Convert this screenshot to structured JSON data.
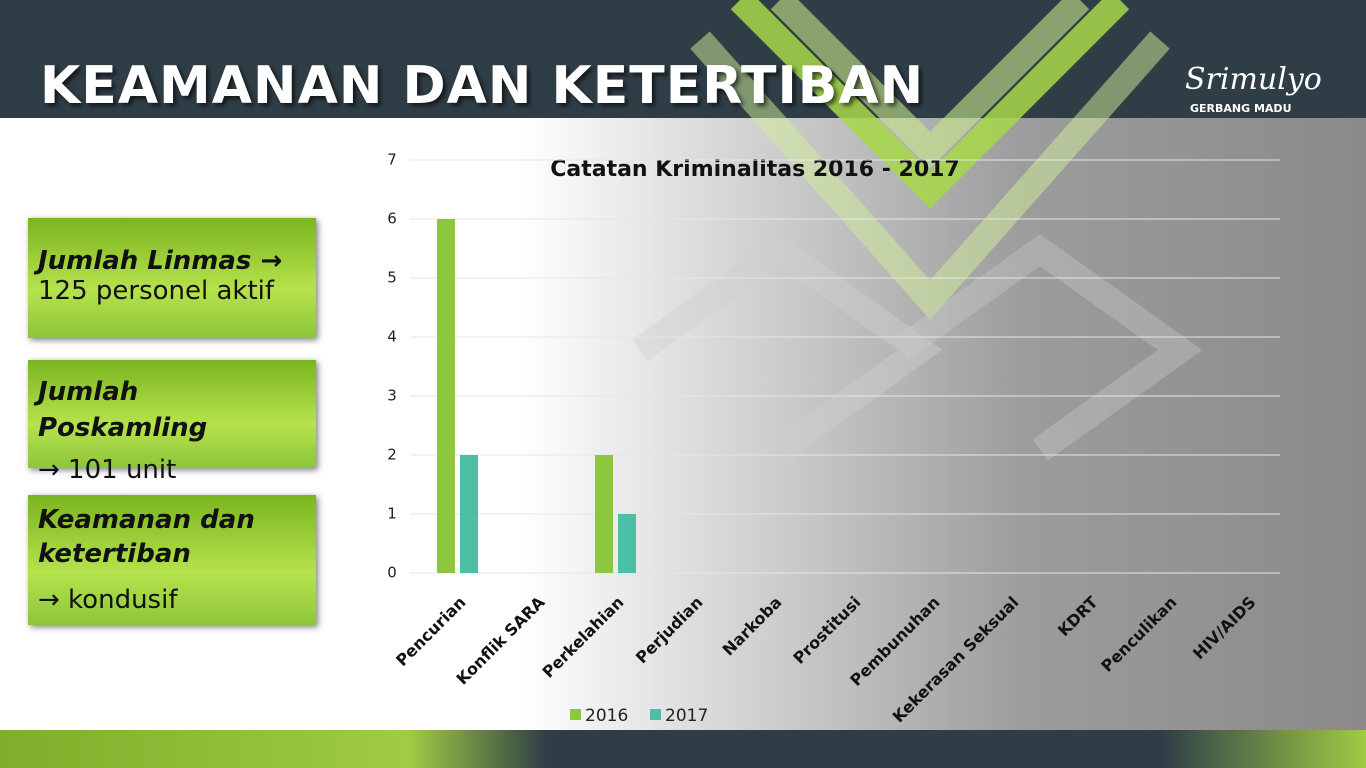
{
  "header": {
    "title": "KEAMANAN DAN KETERTIBAN",
    "logo": "Srimulyo",
    "logo_sub": "GERBANG MADU"
  },
  "boxes": [
    {
      "heading": "Jumlah Linmas →",
      "text": "125 personel aktif"
    },
    {
      "heading": "Jumlah Poskamling",
      "text": "→ 101 unit"
    },
    {
      "heading": "Keamanan dan ketertiban",
      "text": "→ kondusif"
    }
  ],
  "chart_data": {
    "type": "bar",
    "title": "Catatan Kriminalitas 2016 - 2017",
    "categories": [
      "Pencurian",
      "Konflik SARA",
      "Perkelahian",
      "Perjudian",
      "Narkoba",
      "Prostitusi",
      "Pembunuhan",
      "Kekerasan Seksual",
      "KDRT",
      "Penculikan",
      "HIV/AIDS"
    ],
    "series": [
      {
        "name": "2016",
        "color": "#8dc63f",
        "values": [
          6,
          0,
          2,
          0,
          0,
          0,
          0,
          0,
          0,
          0,
          0
        ]
      },
      {
        "name": "2017",
        "color": "#4cbfa6",
        "values": [
          2,
          0,
          1,
          0,
          0,
          0,
          0,
          0,
          0,
          0,
          0
        ]
      }
    ],
    "ylim": [
      0,
      7
    ],
    "yticks": [
      0,
      1,
      2,
      3,
      4,
      5,
      6,
      7
    ],
    "grid": true
  }
}
